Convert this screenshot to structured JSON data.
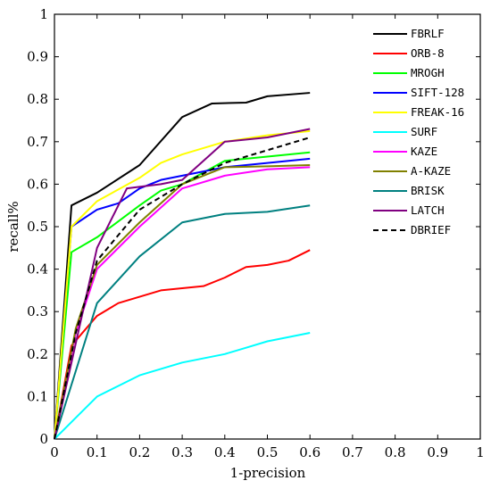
{
  "chart_data": {
    "type": "line",
    "xlabel": "1-precision",
    "ylabel": "recall%",
    "xlim": [
      0,
      1
    ],
    "ylim": [
      0,
      1
    ],
    "xticks": [
      "0",
      "0.1",
      "0.2",
      "0.3",
      "0.4",
      "0.5",
      "0.6",
      "0.7",
      "0.8",
      "0.9",
      "1"
    ],
    "yticks": [
      "0",
      "0.1",
      "0.2",
      "0.3",
      "0.4",
      "0.5",
      "0.6",
      "0.7",
      "0.8",
      "0.9",
      "1"
    ],
    "grid": false,
    "legend_position": "top-right",
    "series": [
      {
        "name": "FBRLF",
        "color": "#000000",
        "dash": false,
        "x": [
          0,
          0.04,
          0.1,
          0.2,
          0.3,
          0.37,
          0.45,
          0.5,
          0.6
        ],
        "y": [
          0,
          0.55,
          0.58,
          0.645,
          0.758,
          0.79,
          0.792,
          0.807,
          0.815
        ]
      },
      {
        "name": "ORB-8",
        "color": "#ff0000",
        "dash": false,
        "x": [
          0,
          0.04,
          0.1,
          0.15,
          0.2,
          0.25,
          0.3,
          0.35,
          0.4,
          0.45,
          0.5,
          0.55,
          0.6
        ],
        "y": [
          0,
          0.22,
          0.29,
          0.32,
          0.335,
          0.35,
          0.355,
          0.36,
          0.38,
          0.405,
          0.41,
          0.42,
          0.445
        ]
      },
      {
        "name": "MROGH",
        "color": "#00ff00",
        "dash": false,
        "x": [
          0,
          0.04,
          0.1,
          0.2,
          0.25,
          0.3,
          0.4,
          0.5,
          0.6
        ],
        "y": [
          0,
          0.44,
          0.475,
          0.55,
          0.585,
          0.6,
          0.655,
          0.665,
          0.675
        ]
      },
      {
        "name": "SIFT-128",
        "color": "#0000ff",
        "dash": false,
        "x": [
          0,
          0.04,
          0.1,
          0.15,
          0.2,
          0.25,
          0.3,
          0.4,
          0.5,
          0.6
        ],
        "y": [
          0,
          0.5,
          0.54,
          0.555,
          0.59,
          0.61,
          0.62,
          0.64,
          0.65,
          0.66
        ]
      },
      {
        "name": "FREAK-16",
        "color": "#ffff00",
        "dash": false,
        "x": [
          0,
          0.04,
          0.1,
          0.2,
          0.25,
          0.3,
          0.4,
          0.5,
          0.6
        ],
        "y": [
          0,
          0.5,
          0.56,
          0.615,
          0.65,
          0.67,
          0.7,
          0.715,
          0.725
        ]
      },
      {
        "name": "SURF",
        "color": "#00ffff",
        "dash": false,
        "x": [
          0,
          0.05,
          0.1,
          0.15,
          0.2,
          0.25,
          0.3,
          0.35,
          0.4,
          0.45,
          0.5,
          0.55,
          0.6
        ],
        "y": [
          0,
          0.05,
          0.1,
          0.125,
          0.15,
          0.165,
          0.18,
          0.19,
          0.2,
          0.215,
          0.23,
          0.24,
          0.25
        ]
      },
      {
        "name": "KAZE",
        "color": "#ff00ff",
        "dash": false,
        "x": [
          0,
          0.05,
          0.1,
          0.2,
          0.3,
          0.4,
          0.5,
          0.6
        ],
        "y": [
          0,
          0.25,
          0.4,
          0.5,
          0.59,
          0.62,
          0.635,
          0.64
        ]
      },
      {
        "name": "A-KAZE",
        "color": "#808000",
        "dash": false,
        "x": [
          0,
          0.05,
          0.1,
          0.2,
          0.3,
          0.4,
          0.5,
          0.6
        ],
        "y": [
          0,
          0.26,
          0.41,
          0.51,
          0.6,
          0.64,
          0.642,
          0.645
        ]
      },
      {
        "name": "BRISK",
        "color": "#008080",
        "dash": false,
        "x": [
          0,
          0.1,
          0.2,
          0.3,
          0.4,
          0.5,
          0.6
        ],
        "y": [
          0,
          0.32,
          0.43,
          0.51,
          0.53,
          0.535,
          0.55
        ]
      },
      {
        "name": "LATCH",
        "color": "#800080",
        "dash": false,
        "x": [
          0,
          0.1,
          0.17,
          0.25,
          0.3,
          0.4,
          0.5,
          0.6
        ],
        "y": [
          0,
          0.45,
          0.59,
          0.6,
          0.61,
          0.7,
          0.71,
          0.73
        ]
      },
      {
        "name": "DBRIEF",
        "color": "#000000",
        "dash": true,
        "x": [
          0,
          0.05,
          0.1,
          0.2,
          0.3,
          0.4,
          0.5,
          0.6
        ],
        "y": [
          0,
          0.25,
          0.42,
          0.54,
          0.6,
          0.65,
          0.68,
          0.71
        ]
      }
    ]
  }
}
